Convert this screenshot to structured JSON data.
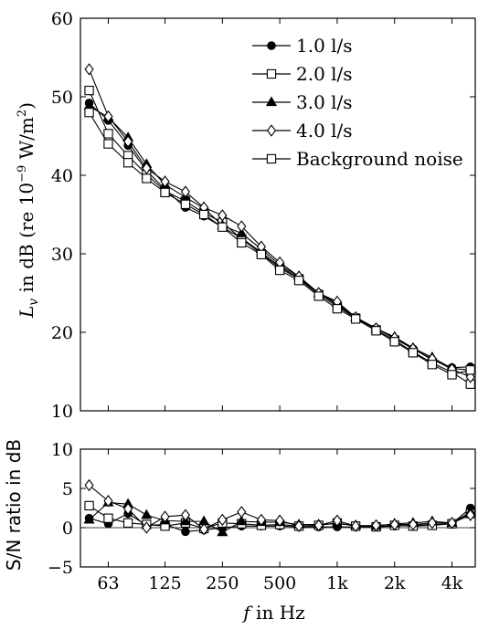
{
  "chart_data": [
    {
      "type": "line",
      "xlabel": "",
      "ylabel": "L_v in dB (re 10^-9 W/m^2)",
      "ylabel_parts": {
        "main": "in dB (re 10",
        "exp": "−9",
        "unit": " W/m",
        "unit_exp": "2",
        "close": ")"
      },
      "ylim": [
        10,
        60
      ],
      "yticks": [
        10,
        20,
        30,
        40,
        50,
        60
      ],
      "x_scale": "log",
      "x_freqs": [
        50,
        63,
        80,
        100,
        125,
        160,
        200,
        250,
        315,
        400,
        500,
        630,
        800,
        1000,
        1250,
        1600,
        2000,
        2500,
        3150,
        4000,
        5000
      ],
      "grid": false,
      "legend_position": "top-right",
      "series": [
        {
          "name": "1.0 l/s",
          "marker": "circle-filled",
          "values": [
            49.2,
            47.0,
            43.8,
            40.6,
            38.2,
            35.9,
            34.8,
            33.4,
            32.0,
            30.2,
            28.4,
            26.9,
            25.0,
            23.5,
            21.9,
            20.5,
            19.2,
            17.9,
            16.5,
            15.5,
            15.6
          ]
        },
        {
          "name": "2.0 l/s",
          "marker": "square-open",
          "values": [
            50.8,
            45.3,
            42.5,
            40.1,
            38.0,
            36.7,
            35.2,
            34.0,
            31.9,
            30.0,
            28.2,
            26.8,
            24.8,
            23.3,
            21.8,
            20.3,
            19.0,
            17.5,
            16.1,
            14.9,
            13.4
          ]
        },
        {
          "name": "3.0 l/s",
          "marker": "triangle-filled",
          "values": [
            48.8,
            47.4,
            44.8,
            41.4,
            38.8,
            37.2,
            35.8,
            33.6,
            32.6,
            30.6,
            28.6,
            27.1,
            25.0,
            23.7,
            21.9,
            20.5,
            19.4,
            18.0,
            16.8,
            15.4,
            15.2
          ]
        },
        {
          "name": "4.0 l/s",
          "marker": "diamond-open",
          "values": [
            53.5,
            47.5,
            44.3,
            40.9,
            39.2,
            37.9,
            35.9,
            34.9,
            33.5,
            30.9,
            28.9,
            27.1,
            25.0,
            23.9,
            21.9,
            20.5,
            19.3,
            17.9,
            16.6,
            15.3,
            14.3
          ]
        },
        {
          "name": "Background noise",
          "marker": "square-open",
          "values": [
            48.0,
            44.0,
            41.6,
            39.6,
            37.8,
            36.3,
            35.0,
            33.4,
            31.4,
            29.9,
            27.9,
            26.6,
            24.6,
            23.0,
            21.7,
            20.2,
            18.8,
            17.4,
            15.9,
            14.6,
            15.2
          ]
        }
      ],
      "legend_entries": [
        "1.0 l/s",
        "2.0 l/s",
        "3.0 l/s",
        "4.0 l/s",
        "Background noise"
      ]
    },
    {
      "type": "line",
      "xlabel": "f in Hz",
      "ylabel": "S/N ratio in dB",
      "ylim": [
        -5,
        10
      ],
      "yticks": [
        -5,
        0,
        5,
        10
      ],
      "x_scale": "log",
      "x_freqs": [
        50,
        63,
        80,
        100,
        125,
        160,
        200,
        250,
        315,
        400,
        500,
        630,
        800,
        1000,
        1250,
        1600,
        2000,
        2500,
        3150,
        4000,
        5000
      ],
      "xtick_values": [
        63,
        125,
        250,
        500,
        1000,
        2000,
        4000
      ],
      "xtick_labels": [
        "63",
        "125",
        "250",
        "500",
        "1k",
        "2k",
        "4k"
      ],
      "grid": false,
      "reference_line": 0,
      "series": [
        {
          "name": "1.0 l/s",
          "marker": "circle-filled",
          "values": [
            1.2,
            0.5,
            1.8,
            0.3,
            0.4,
            -0.5,
            -0.3,
            0.0,
            0.2,
            0.2,
            0.2,
            0.1,
            0.1,
            0.1,
            0.1,
            0.1,
            0.2,
            0.3,
            0.4,
            0.5,
            2.5
          ]
        },
        {
          "name": "2.0 l/s",
          "marker": "square-open",
          "values": [
            2.8,
            1.2,
            0.6,
            0.4,
            0.2,
            0.6,
            -0.1,
            0.6,
            0.5,
            0.3,
            0.4,
            0.2,
            0.3,
            0.6,
            0.2,
            0.1,
            0.3,
            0.2,
            0.3,
            0.5,
            1.8
          ]
        },
        {
          "name": "3.0 l/s",
          "marker": "triangle-filled",
          "values": [
            1.0,
            3.2,
            3.0,
            1.6,
            0.9,
            0.8,
            0.8,
            -0.6,
            0.8,
            0.7,
            0.7,
            0.4,
            0.4,
            0.5,
            0.3,
            0.2,
            0.5,
            0.6,
            0.8,
            0.6,
            2.0
          ]
        },
        {
          "name": "4.0 l/s",
          "marker": "diamond-open",
          "values": [
            5.4,
            3.4,
            2.4,
            0.0,
            1.4,
            1.6,
            -0.2,
            1.0,
            2.0,
            1.0,
            0.9,
            0.2,
            0.3,
            0.9,
            0.2,
            0.3,
            0.4,
            0.4,
            0.6,
            0.6,
            1.6
          ]
        }
      ]
    }
  ]
}
